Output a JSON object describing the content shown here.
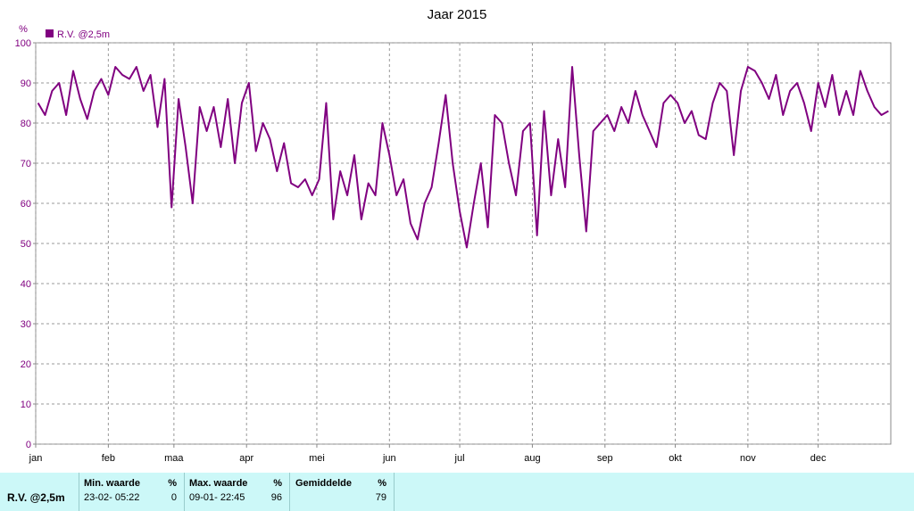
{
  "chart_data": {
    "type": "line",
    "title": "Jaar 2015",
    "y_label": "%",
    "xlim": [
      0,
      365
    ],
    "ylim": [
      0,
      100
    ],
    "xticks": [
      {
        "value": 0,
        "label": "jan"
      },
      {
        "value": 31,
        "label": "feb"
      },
      {
        "value": 59,
        "label": "maa"
      },
      {
        "value": 90,
        "label": "apr"
      },
      {
        "value": 120,
        "label": "mei"
      },
      {
        "value": 151,
        "label": "jun"
      },
      {
        "value": 181,
        "label": "jul"
      },
      {
        "value": 212,
        "label": "aug"
      },
      {
        "value": 243,
        "label": "sep"
      },
      {
        "value": 273,
        "label": "okt"
      },
      {
        "value": 304,
        "label": "nov"
      },
      {
        "value": 334,
        "label": "dec"
      }
    ],
    "yticks": [
      0,
      10,
      20,
      30,
      40,
      50,
      60,
      70,
      80,
      90,
      100
    ],
    "grid": true,
    "x": [
      1,
      4,
      7,
      10,
      13,
      16,
      19,
      22,
      25,
      28,
      31,
      34,
      37,
      40,
      43,
      46,
      49,
      52,
      55,
      58,
      61,
      64,
      67,
      70,
      73,
      76,
      79,
      82,
      85,
      88,
      91,
      94,
      97,
      100,
      103,
      106,
      109,
      112,
      115,
      118,
      121,
      124,
      127,
      130,
      133,
      136,
      139,
      142,
      145,
      148,
      151,
      154,
      157,
      160,
      163,
      166,
      169,
      172,
      175,
      178,
      181,
      184,
      187,
      190,
      193,
      196,
      199,
      202,
      205,
      208,
      211,
      214,
      217,
      220,
      223,
      226,
      229,
      232,
      235,
      238,
      241,
      244,
      247,
      250,
      253,
      256,
      259,
      262,
      265,
      268,
      271,
      274,
      277,
      280,
      283,
      286,
      289,
      292,
      295,
      298,
      301,
      304,
      307,
      310,
      313,
      316,
      319,
      322,
      325,
      328,
      331,
      334,
      337,
      340,
      343,
      346,
      349,
      352,
      355,
      358,
      361,
      364
    ],
    "series": [
      {
        "name": "R.V. @2,5m",
        "color": "#800080",
        "values": [
          85,
          82,
          88,
          90,
          82,
          93,
          86,
          81,
          88,
          91,
          87,
          94,
          92,
          91,
          94,
          88,
          92,
          79,
          91,
          59,
          86,
          74,
          60,
          84,
          78,
          84,
          74,
          86,
          70,
          85,
          90,
          73,
          80,
          76,
          68,
          75,
          65,
          64,
          66,
          62,
          66,
          85,
          56,
          68,
          62,
          72,
          56,
          65,
          62,
          80,
          72,
          62,
          66,
          55,
          51,
          60,
          64,
          75,
          87,
          70,
          58,
          49,
          60,
          70,
          54,
          82,
          80,
          70,
          62,
          78,
          80,
          52,
          83,
          62,
          76,
          64,
          94,
          72,
          53,
          78,
          80,
          82,
          78,
          84,
          80,
          88,
          82,
          78,
          74,
          85,
          87,
          85,
          80,
          83,
          77,
          76,
          85,
          90,
          88,
          72,
          88,
          94,
          93,
          90,
          86,
          92,
          82,
          88,
          90,
          85,
          78,
          90,
          84,
          92,
          82,
          88,
          82,
          93,
          88,
          84,
          82,
          83
        ]
      }
    ]
  },
  "stats": {
    "label": "R.V. @2,5m",
    "min": {
      "header": "Min. waarde",
      "unit": "%",
      "when": "23-02- 05:22",
      "value": 0
    },
    "max": {
      "header": "Max. waarde",
      "unit": "%",
      "when": "09-01- 22:45",
      "value": 96
    },
    "mean": {
      "header": "Gemiddelde",
      "unit": "%",
      "value": 79
    }
  }
}
